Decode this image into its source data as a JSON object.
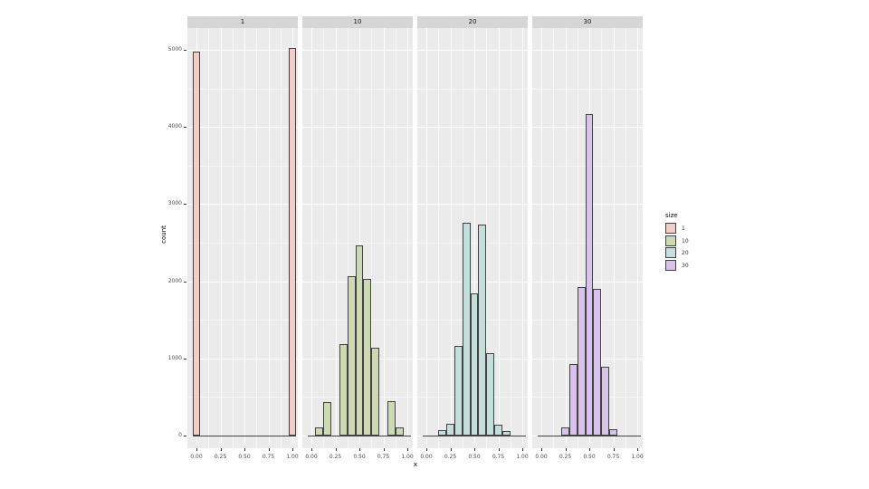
{
  "chart": {
    "x_title": "x",
    "y_title": "count",
    "legend_title": "size"
  },
  "chart_data": {
    "type": "bar",
    "subtype": "faceted-histogram",
    "facet_variable": "size",
    "facet_labels": [
      "1",
      "10",
      "20",
      "30"
    ],
    "xlabel": "x",
    "ylabel": "count",
    "x_tick_labels": [
      "0.00",
      "0.25",
      "0.50",
      "0.75",
      "1.00"
    ],
    "x_tick_values": [
      0,
      0.25,
      0.5,
      0.75,
      1
    ],
    "x_minor_ticks": [
      0.125,
      0.375,
      0.625,
      0.875
    ],
    "y_tick_labels": [
      "0",
      "1000",
      "2000",
      "3000",
      "4000",
      "5000"
    ],
    "y_tick_values": [
      0,
      1000,
      2000,
      3000,
      4000,
      5000
    ],
    "y_minor_ticks": [
      500,
      1500,
      2500,
      3500,
      4500
    ],
    "xlim": [
      -0.06,
      1.06
    ],
    "ylim": [
      0,
      5280
    ],
    "grid": true,
    "legend_position": "right",
    "binwidth": 0.0833,
    "total_per_facet": 10000,
    "panel_background": "#EBEBEB",
    "strip_background": "#D6D6D6",
    "bar_outline_color": "#424242",
    "facets": [
      {
        "label": "1",
        "fill": "#F2CEC9",
        "bins": [
          {
            "center": 0,
            "count": 4980
          },
          {
            "center": 1,
            "count": 5020
          }
        ]
      },
      {
        "label": "10",
        "fill": "#CDD9B2",
        "bins": [
          {
            "center": 0,
            "count": 10
          },
          {
            "center": 0.0833,
            "count": 100
          },
          {
            "center": 0.1667,
            "count": 440
          },
          {
            "center": 0.3333,
            "count": 1185
          },
          {
            "center": 0.4167,
            "count": 2065
          },
          {
            "center": 0.5,
            "count": 2460
          },
          {
            "center": 0.5833,
            "count": 2035
          },
          {
            "center": 0.6667,
            "count": 1140
          },
          {
            "center": 0.8333,
            "count": 445
          },
          {
            "center": 0.9167,
            "count": 100
          },
          {
            "center": 1,
            "count": 20
          }
        ]
      },
      {
        "label": "20",
        "fill": "#C3DEDB",
        "bins": [
          {
            "center": 0.1667,
            "count": 70
          },
          {
            "center": 0.25,
            "count": 155
          },
          {
            "center": 0.3333,
            "count": 1165
          },
          {
            "center": 0.4167,
            "count": 2760
          },
          {
            "center": 0.5,
            "count": 1840
          },
          {
            "center": 0.5833,
            "count": 2740
          },
          {
            "center": 0.6667,
            "count": 1070
          },
          {
            "center": 0.75,
            "count": 140
          },
          {
            "center": 0.8333,
            "count": 60
          }
        ]
      },
      {
        "label": "30",
        "fill": "#D8C3EC",
        "bins": [
          {
            "center": 0.25,
            "count": 100
          },
          {
            "center": 0.3333,
            "count": 930
          },
          {
            "center": 0.4167,
            "count": 1930
          },
          {
            "center": 0.5,
            "count": 4170
          },
          {
            "center": 0.5833,
            "count": 1900
          },
          {
            "center": 0.6667,
            "count": 890
          },
          {
            "center": 0.75,
            "count": 80
          }
        ]
      }
    ],
    "legend": {
      "title": "size",
      "items": [
        {
          "label": "1",
          "fill": "#F2CEC9"
        },
        {
          "label": "10",
          "fill": "#CDD9B2"
        },
        {
          "label": "20",
          "fill": "#C3DEDB"
        },
        {
          "label": "30",
          "fill": "#D8C3EC"
        }
      ]
    }
  }
}
